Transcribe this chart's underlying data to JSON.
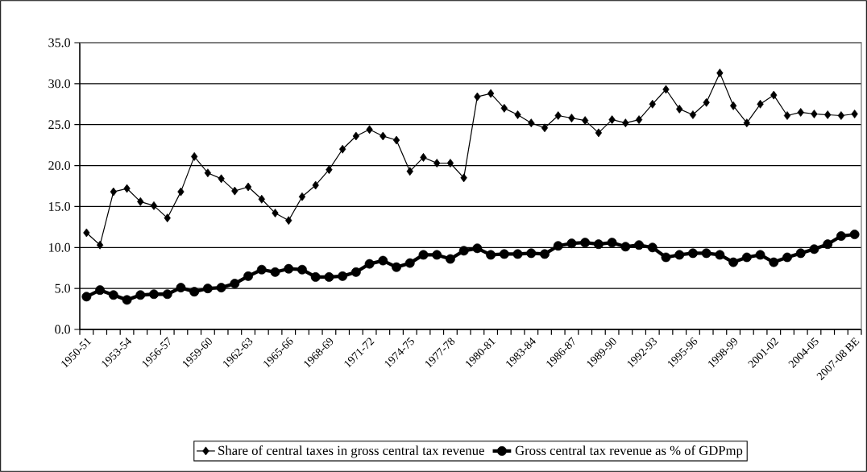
{
  "chart_data": {
    "type": "line",
    "categories": [
      "1950-51",
      null,
      null,
      "1953-54",
      null,
      null,
      "1956-57",
      null,
      null,
      "1959-60",
      null,
      null,
      "1962-63",
      null,
      null,
      "1965-66",
      null,
      null,
      "1968-69",
      null,
      null,
      "1971-72",
      null,
      null,
      "1974-75",
      null,
      null,
      "1977-78",
      null,
      null,
      "1980-81",
      null,
      null,
      "1983-84",
      null,
      null,
      "1986-87",
      null,
      null,
      "1989-90",
      null,
      null,
      "1992-93",
      null,
      null,
      "1995-96",
      null,
      null,
      "1998-99",
      null,
      null,
      "2001-02",
      null,
      null,
      "2004-05",
      null,
      null,
      "2007-08 BE"
    ],
    "series": [
      {
        "name": "Share of central taxes in gross central tax revenue",
        "color": "#000000",
        "marker": "diamond",
        "values": [
          11.8,
          10.3,
          16.8,
          17.2,
          15.6,
          15.1,
          13.6,
          16.8,
          21.1,
          19.1,
          18.4,
          16.9,
          17.4,
          15.9,
          14.2,
          13.3,
          16.2,
          17.6,
          19.5,
          22.0,
          23.6,
          24.4,
          23.6,
          23.1,
          19.3,
          21.0,
          20.3,
          20.3,
          18.5,
          28.4,
          28.8,
          27.0,
          26.2,
          25.2,
          24.6,
          26.1,
          25.8,
          25.5,
          24.0,
          25.6,
          25.2,
          25.6,
          27.5,
          29.3,
          26.9,
          26.2,
          27.7,
          31.3,
          27.3,
          25.2,
          27.5,
          28.6,
          26.1,
          26.5,
          26.3,
          26.2,
          26.1,
          26.3
        ]
      },
      {
        "name": "Gross central tax revenue as % of GDPmp",
        "color": "#000000",
        "marker": "circle",
        "values": [
          4.0,
          4.8,
          4.2,
          3.6,
          4.2,
          4.3,
          4.3,
          5.1,
          4.6,
          5.0,
          5.1,
          5.6,
          6.5,
          7.3,
          7.0,
          7.4,
          7.3,
          6.4,
          6.4,
          6.5,
          7.0,
          8.0,
          8.4,
          7.6,
          8.1,
          9.1,
          9.1,
          8.6,
          9.6,
          9.9,
          9.1,
          9.2,
          9.2,
          9.3,
          9.2,
          10.2,
          10.5,
          10.6,
          10.4,
          10.6,
          10.1,
          10.3,
          10.0,
          8.8,
          9.1,
          9.3,
          9.3,
          9.1,
          8.2,
          8.8,
          9.1,
          8.2,
          8.8,
          9.3,
          9.8,
          10.4,
          11.4,
          11.6
        ]
      }
    ],
    "ylim": [
      0,
      35
    ],
    "yticks": [
      {
        "value": 0,
        "label": "0.0"
      },
      {
        "value": 5,
        "label": "5.0"
      },
      {
        "value": 10,
        "label": "10.0"
      },
      {
        "value": 15,
        "label": "15.0"
      },
      {
        "value": 20,
        "label": "20.0"
      },
      {
        "value": 25,
        "label": "25.0"
      },
      {
        "value": 30,
        "label": "30.0"
      },
      {
        "value": 35,
        "label": "35.0"
      }
    ],
    "grid": "y",
    "legend": "bottom"
  }
}
